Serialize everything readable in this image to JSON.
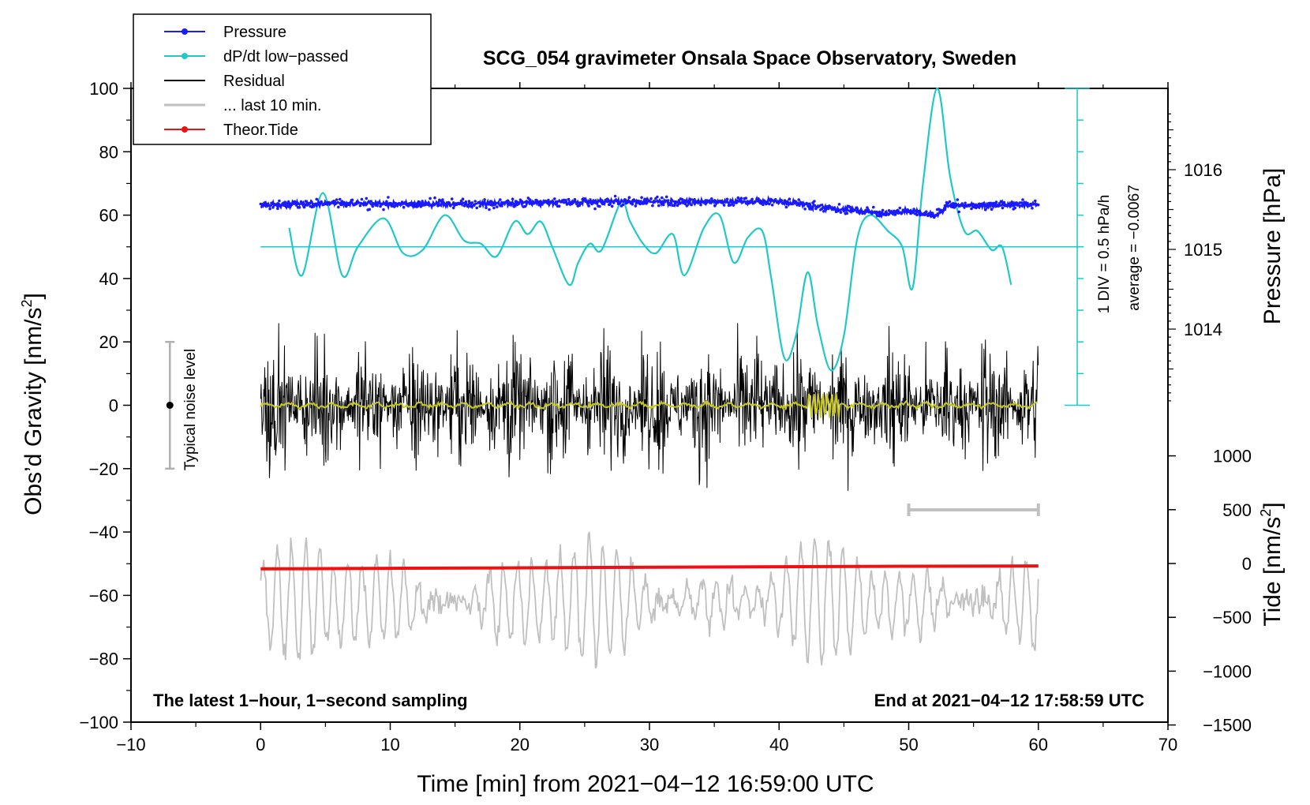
{
  "chart_data": {
    "type": "line",
    "title": "SCG_054 gravimeter Onsala Space Observatory, Sweden",
    "xlabel": "Time [min] from 2021−04−12 16:59:00 UTC",
    "ylabel": "Obs’d Gravity [nm/s",
    "ylabel_sup": "2",
    "ylabel_end": "]",
    "right_pressure_label": "Pressure [hPa]",
    "right_tide_label": "Tide [nm/s",
    "right_tide_sup": "2",
    "right_tide_end": "]",
    "xlim": [
      -10,
      70
    ],
    "ylim": [
      -100,
      100
    ],
    "x_ticks": [
      -10,
      0,
      10,
      20,
      30,
      40,
      50,
      60,
      70
    ],
    "x_tick_labels": [
      "−10",
      "0",
      "10",
      "20",
      "30",
      "40",
      "50",
      "60",
      "70"
    ],
    "y_ticks": [
      100,
      80,
      60,
      40,
      20,
      0,
      -20,
      -40,
      -60,
      -80,
      -100
    ],
    "y_tick_labels": [
      "100",
      "80",
      "60",
      "40",
      "20",
      "0",
      "−20",
      "−40",
      "−60",
      "−80",
      "−100"
    ],
    "pressure_axis": {
      "ticks": [
        1016,
        1015,
        1014
      ],
      "tick_labels": [
        "1016",
        "1015",
        "1014"
      ],
      "range_hpa": [
        1012.9,
        1016.9
      ]
    },
    "tide_axis": {
      "ticks": [
        1000,
        500,
        0,
        -500,
        -1000,
        -1500
      ],
      "tick_labels": [
        "1000",
        "500",
        "0",
        "−500",
        "−1000",
        "−1500"
      ],
      "range": [
        -1500,
        1000
      ]
    },
    "legend": [
      {
        "label": "Pressure",
        "color": "#1a1aff",
        "marker": true
      },
      {
        "label": "dP/dt low−passed",
        "color": "#20c8c8",
        "marker": true
      },
      {
        "label": "Residual",
        "color": "#000000",
        "marker": false
      },
      {
        "label": "... last 10 min.",
        "color": "#c0c0c0",
        "marker": false
      },
      {
        "label": "Theor.Tide",
        "color": "#ee1111",
        "marker": true
      }
    ],
    "dpdt_scale_label": "1 DIV = 0.5 hPa/h",
    "dpdt_average_label": "average = −0.0067",
    "noise_label": "Typical noise level",
    "noise_level_nm_s2": 20,
    "footer_left": "The latest 1−hour, 1−second sampling",
    "footer_right": "End at 2021−04−12 17:58:59 UTC",
    "series": [
      {
        "name": "Pressure",
        "unit": "hPa",
        "color": "#1a1aff",
        "x": [
          0,
          5,
          10,
          15,
          20,
          25,
          30,
          35,
          40,
          44,
          48,
          50,
          52,
          53,
          56,
          60
        ],
        "values": [
          1015.55,
          1015.58,
          1015.57,
          1015.57,
          1015.58,
          1015.6,
          1015.6,
          1015.6,
          1015.6,
          1015.52,
          1015.45,
          1015.48,
          1015.42,
          1015.55,
          1015.55,
          1015.57
        ]
      },
      {
        "name": "dP/dt low−passed",
        "unit": "hPa/h",
        "color": "#20c8c8",
        "baseline_y": 50,
        "x": [
          2.2,
          3.2,
          4.8,
          6.3,
          7.5,
          9.5,
          11,
          12.5,
          14.2,
          15.7,
          17,
          18.2,
          19.6,
          20.6,
          21.6,
          22.5,
          23.8,
          24.5,
          25.4,
          26.3,
          27.8,
          28.5,
          29.5,
          30.5,
          31.8,
          32.7,
          34.2,
          35.4,
          36.5,
          37.6,
          38.7,
          39.4,
          40.4,
          41.3,
          42.2,
          43.0,
          44.0,
          45.0,
          46.0,
          47.0,
          48.4,
          49.5,
          50.3,
          51.1,
          52.2,
          53.2,
          54.3,
          55.3,
          56.4,
          57.2,
          57.9
        ],
        "values": [
          56,
          41,
          67,
          41,
          50,
          59,
          48,
          49,
          60,
          52,
          51,
          47,
          58,
          54,
          58,
          50,
          38,
          45,
          51,
          49,
          64,
          58,
          51,
          48,
          54,
          41,
          56,
          60,
          45,
          53,
          55,
          40,
          15,
          22,
          42,
          25,
          11,
          22,
          52,
          60,
          55,
          50,
          37,
          70,
          100,
          72,
          55,
          55,
          49,
          50,
          38
        ]
      },
      {
        "name": "Residual",
        "unit": "nm/s2",
        "color": "#000000",
        "x_range": [
          0,
          60
        ],
        "typical_amplitude": 20,
        "min": -27,
        "max": 28
      },
      {
        "name": "Residual low−passed",
        "unit": "nm/s2",
        "color": "#c8c81e",
        "x_range": [
          0,
          60
        ],
        "typical_amplitude": 2,
        "burst_x": 43.5,
        "burst_amplitude": 4
      },
      {
        "name": "... last 10 min.",
        "unit": "nm/s2",
        "color": "#c0c0c0",
        "x_range": [
          0,
          60
        ],
        "min": -83,
        "max": -40,
        "center": -62,
        "segment_bar_x": [
          50,
          60
        ],
        "segment_bar_y": -33
      },
      {
        "name": "Theor.Tide",
        "unit": "nm/s2",
        "color": "#ee1111",
        "x": [
          0,
          10,
          20,
          30,
          40,
          50,
          60
        ],
        "values": [
          -50,
          -45,
          -40,
          -35,
          -30,
          -26,
          -23
        ]
      }
    ]
  }
}
